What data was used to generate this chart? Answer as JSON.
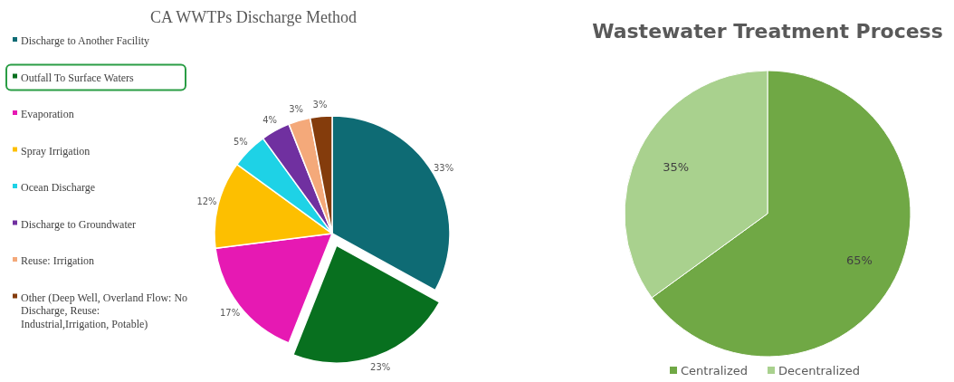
{
  "chart_data": [
    {
      "type": "pie",
      "title": "CA WWTPs Discharge Method",
      "categories": [
        "Discharge to Another Facility",
        "Outfall To Surface Waters",
        "Evaporation",
        "Spray Irrigation",
        "Ocean Discharge",
        "Discharge to Groundwater",
        "Reuse: Irrigation",
        "Other (Deep Well, Overland Flow: No Discharge,  Reuse: Industrial,Irrigation, Potable)"
      ],
      "values": [
        33,
        23,
        17,
        12,
        5,
        4,
        3,
        3
      ],
      "value_labels": [
        "33%",
        "23%",
        "17%",
        "12%",
        "5%",
        "4%",
        "3%",
        "3%"
      ],
      "colors": [
        "#0e6b74",
        "#08701f",
        "#e619b3",
        "#fdbf00",
        "#1ed2e6",
        "#7030a0",
        "#f4a97a",
        "#843c0c"
      ],
      "legend": "left"
    },
    {
      "type": "pie",
      "title": "Wastewater Treatment Process",
      "categories": [
        "Centralized",
        "Decentralized"
      ],
      "values": [
        65,
        35
      ],
      "value_labels": [
        "65%",
        "35%"
      ],
      "colors": [
        "#70a845",
        "#a9d18e"
      ],
      "legend": "bottom"
    }
  ]
}
